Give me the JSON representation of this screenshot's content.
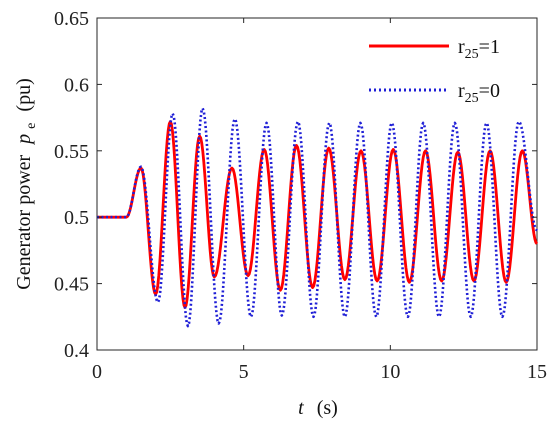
{
  "chart_data": {
    "type": "line",
    "xlabel_var": "t",
    "xlabel_unit": "(s)",
    "ylabel_text": "Generator power",
    "ylabel_var": "p",
    "ylabel_sub": "e",
    "ylabel_unit": "(pu)",
    "xlim": [
      0,
      15
    ],
    "ylim": [
      0.4,
      0.65
    ],
    "xticks": [
      0,
      5,
      10,
      15
    ],
    "xtick_labels": [
      "0",
      "5",
      "10",
      "15"
    ],
    "yticks": [
      0.4,
      0.45,
      0.5,
      0.55,
      0.6,
      0.65
    ],
    "ytick_labels": [
      "0.4",
      "0.45",
      "0.5",
      "0.55",
      "0.6",
      "0.65"
    ],
    "grid": false,
    "legend_position": "top-right",
    "series": [
      {
        "name": "r25=1",
        "legend_base": "r",
        "legend_sub": "25",
        "legend_suffix": "=1",
        "color": "#ff0000",
        "style": "solid",
        "x": [
          0,
          1.0,
          1.5,
          2.0,
          2.5,
          3.0,
          3.5,
          4.0,
          4.6,
          5.15,
          5.7,
          6.25,
          6.8,
          7.35,
          7.9,
          8.45,
          9.0,
          9.55,
          10.1,
          10.65,
          11.2,
          11.75,
          12.3,
          12.85,
          13.4,
          13.95,
          14.5,
          15.0
        ],
        "y": [
          0.5,
          0.5,
          0.537,
          0.442,
          0.572,
          0.432,
          0.561,
          0.455,
          0.537,
          0.456,
          0.551,
          0.445,
          0.554,
          0.447,
          0.552,
          0.453,
          0.55,
          0.452,
          0.551,
          0.451,
          0.55,
          0.452,
          0.549,
          0.452,
          0.55,
          0.451,
          0.55,
          0.48
        ]
      },
      {
        "name": "r25=0",
        "legend_base": "r",
        "legend_sub": "25",
        "legend_suffix": "=0",
        "color": "#1f1fd6",
        "style": "dotted",
        "x": [
          0,
          1.0,
          1.5,
          2.08,
          2.58,
          3.1,
          3.6,
          4.15,
          4.7,
          5.25,
          5.78,
          6.3,
          6.85,
          7.38,
          7.92,
          8.45,
          8.98,
          9.52,
          10.05,
          10.6,
          11.12,
          11.66,
          12.2,
          12.74,
          13.28,
          13.82,
          14.38,
          15.0
        ],
        "y": [
          0.5,
          0.5,
          0.538,
          0.436,
          0.578,
          0.418,
          0.582,
          0.42,
          0.574,
          0.425,
          0.571,
          0.426,
          0.572,
          0.425,
          0.571,
          0.425,
          0.571,
          0.425,
          0.571,
          0.425,
          0.571,
          0.425,
          0.571,
          0.425,
          0.571,
          0.425,
          0.572,
          0.49
        ]
      }
    ]
  }
}
